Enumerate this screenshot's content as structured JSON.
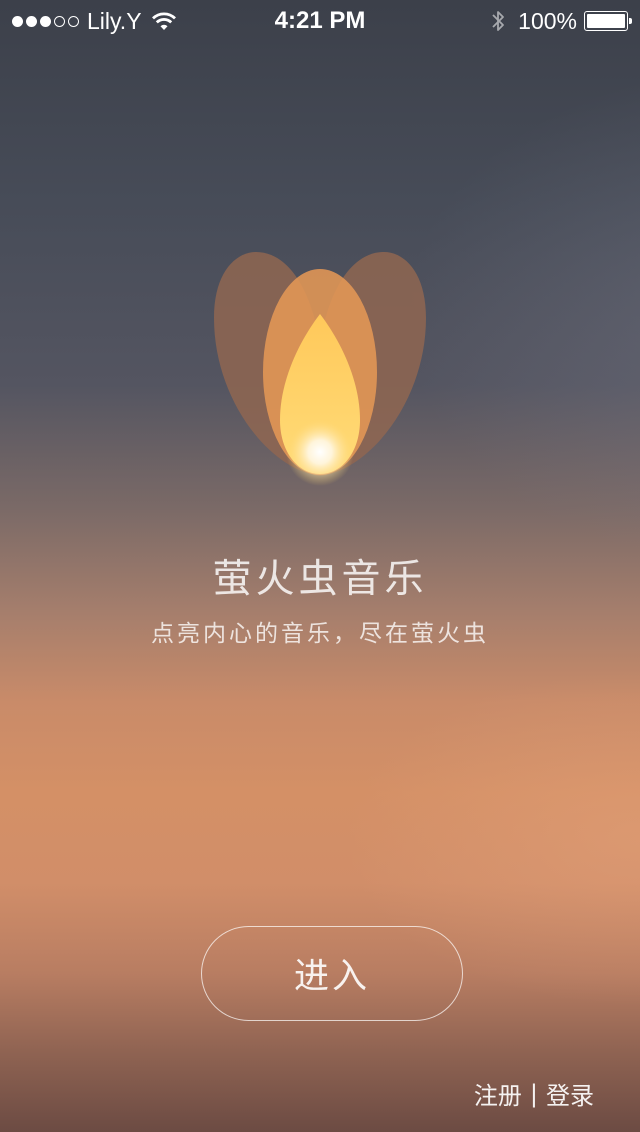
{
  "status_bar": {
    "signal_dots_filled": 3,
    "signal_dots_empty": 2,
    "carrier": "Lily.Y",
    "wifi_icon": "wifi-icon",
    "time": "4:21 PM",
    "bluetooth_icon": "bluetooth-icon",
    "battery_percent": "100%",
    "battery_level": 1.0
  },
  "logo": {
    "icon": "firefly-logo-icon",
    "colors": {
      "outer_petals": "#8f6651",
      "middle_petal": "#e49755",
      "inner_flame": "#ffd466",
      "glow": "#ffffff"
    }
  },
  "main": {
    "title": "萤火虫音乐",
    "subtitle": "点亮内心的音乐，尽在萤火虫"
  },
  "actions": {
    "enter_label": "进入",
    "register_label": "注册",
    "separator": "|",
    "login_label": "登录"
  }
}
